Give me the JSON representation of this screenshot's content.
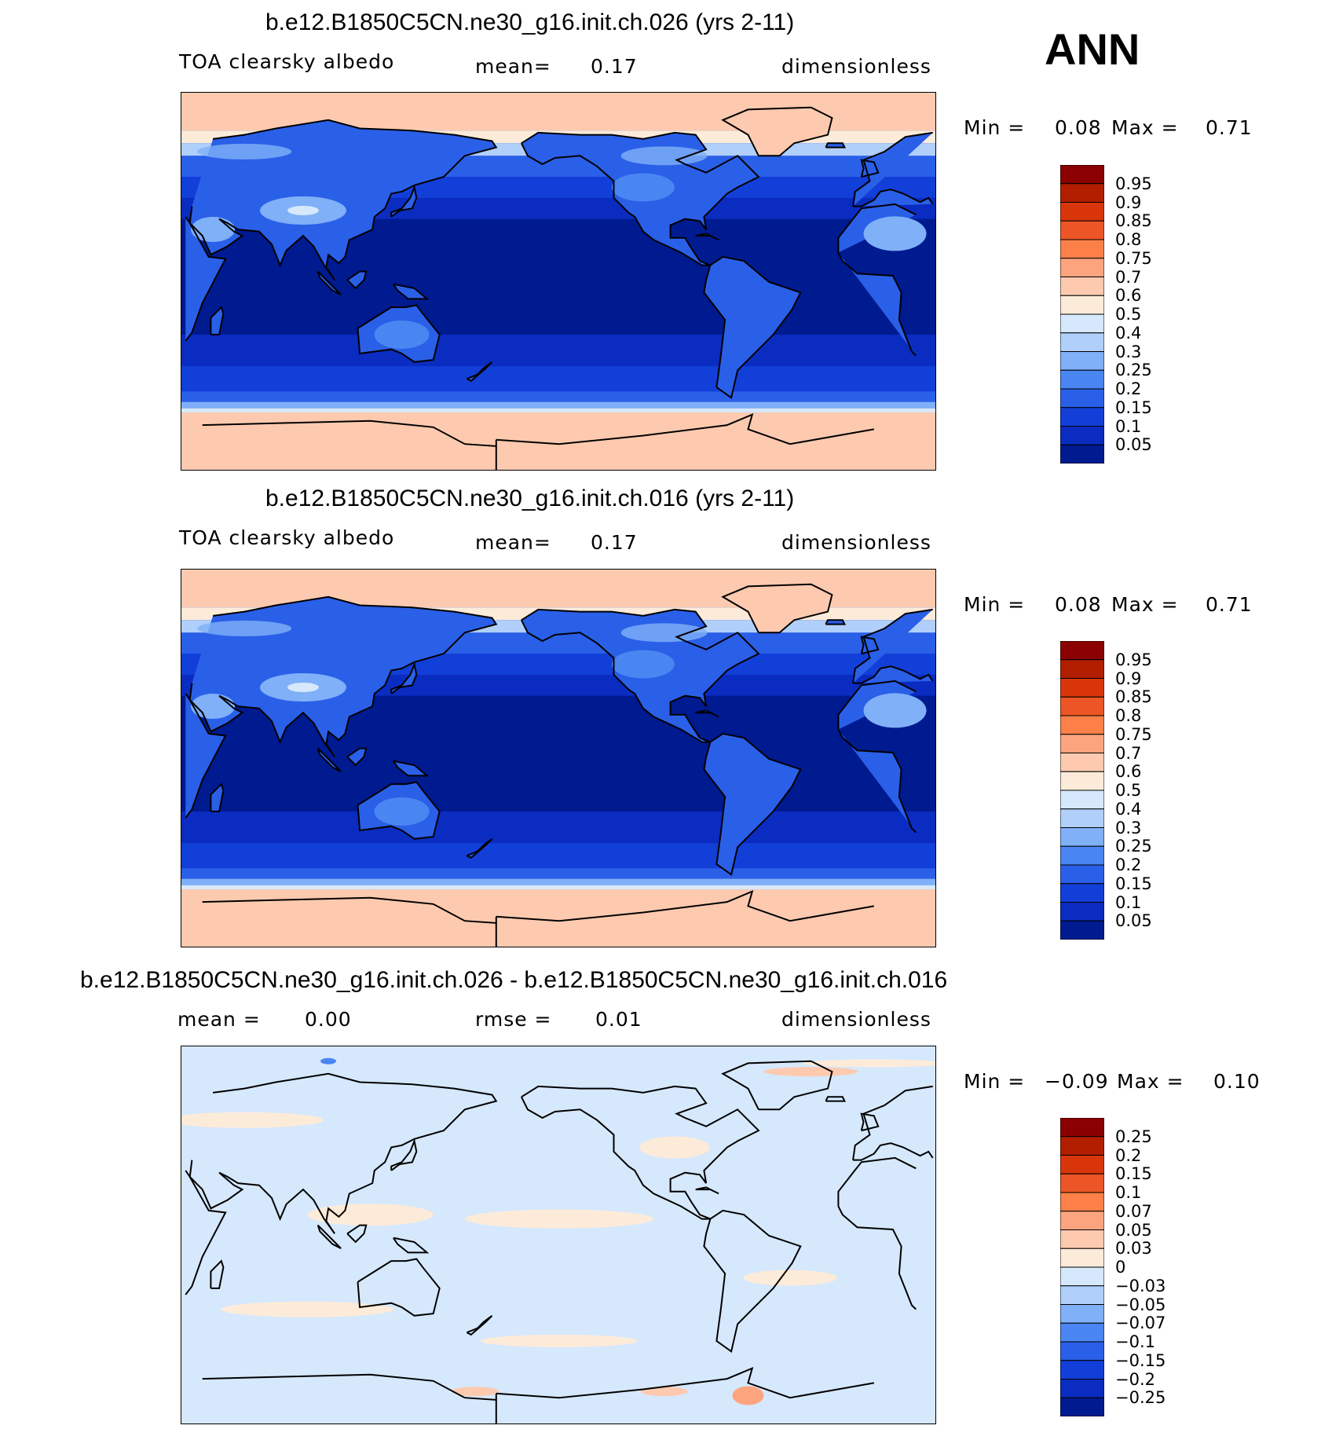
{
  "season": "ANN",
  "panels": [
    {
      "title": "b.e12.B1850C5CN.ne30_g16.init.ch.026 (yrs 2-11)",
      "left_label": "TOA clearsky albedo",
      "mid_label": "mean=",
      "mid_value": "0.17",
      "right_label": "dimensionless",
      "min_label": "Min =",
      "min_value": "0.08",
      "max_label": "Max =",
      "max_value": "0.71",
      "colorbar_labels": [
        "0.95",
        "0.9",
        "0.85",
        "0.8",
        "0.75",
        "0.7",
        "0.6",
        "0.5",
        "0.4",
        "0.3",
        "0.25",
        "0.2",
        "0.15",
        "0.1",
        "0.05"
      ],
      "colorbar_colors": [
        "#8b0000",
        "#b21e00",
        "#d8360a",
        "#ec5525",
        "#fc8048",
        "#fca47e",
        "#fdcab0",
        "#fdebd9",
        "#d6e8fc",
        "#b0cffb",
        "#7fb0f8",
        "#4a86f2",
        "#2a5fe8",
        "#123fd8",
        "#0a2cc0",
        "#001a90"
      ],
      "map_style": "albedo"
    },
    {
      "title": "b.e12.B1850C5CN.ne30_g16.init.ch.016 (yrs 2-11)",
      "left_label": "TOA clearsky albedo",
      "mid_label": "mean=",
      "mid_value": "0.17",
      "right_label": "dimensionless",
      "min_label": "Min =",
      "min_value": "0.08",
      "max_label": "Max =",
      "max_value": "0.71",
      "colorbar_labels": [
        "0.95",
        "0.9",
        "0.85",
        "0.8",
        "0.75",
        "0.7",
        "0.6",
        "0.5",
        "0.4",
        "0.3",
        "0.25",
        "0.2",
        "0.15",
        "0.1",
        "0.05"
      ],
      "colorbar_colors": [
        "#8b0000",
        "#b21e00",
        "#d8360a",
        "#ec5525",
        "#fc8048",
        "#fca47e",
        "#fdcab0",
        "#fdebd9",
        "#d6e8fc",
        "#b0cffb",
        "#7fb0f8",
        "#4a86f2",
        "#2a5fe8",
        "#123fd8",
        "#0a2cc0",
        "#001a90"
      ],
      "map_style": "albedo"
    },
    {
      "title": "b.e12.B1850C5CN.ne30_g16.init.ch.026 - b.e12.B1850C5CN.ne30_g16.init.ch.016",
      "left_label": "mean =",
      "left_value": "0.00",
      "mid_label": "rmse =",
      "mid_value": "0.01",
      "right_label": "dimensionless",
      "min_label": "Min =",
      "min_value": "−0.09",
      "max_label": "Max =",
      "max_value": "0.10",
      "colorbar_labels": [
        "0.25",
        "0.2",
        "0.15",
        "0.1",
        "0.07",
        "0.05",
        "0.03",
        "0",
        "−0.03",
        "−0.05",
        "−0.07",
        "−0.1",
        "−0.15",
        "−0.2",
        "−0.25"
      ],
      "colorbar_colors": [
        "#8b0000",
        "#b21e00",
        "#d8360a",
        "#ec5525",
        "#fc8048",
        "#fca47e",
        "#fdcab0",
        "#fdebd9",
        "#d6e8fc",
        "#b0cffb",
        "#7fb0f8",
        "#4a86f2",
        "#2a5fe8",
        "#123fd8",
        "#0a2cc0",
        "#001a90"
      ],
      "map_style": "diff"
    }
  ]
}
